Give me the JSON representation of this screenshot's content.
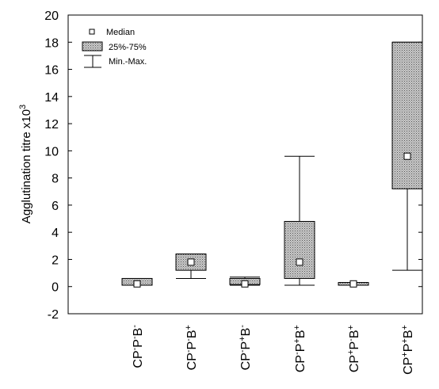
{
  "chart_data": {
    "type": "boxplot",
    "title": "",
    "ylabel": "Agglutination titre x10",
    "ylabel_superscript": "3",
    "ylim": [
      -2,
      20
    ],
    "yticks": [
      -2,
      0,
      2,
      4,
      6,
      8,
      10,
      12,
      14,
      16,
      18,
      20
    ],
    "grid": false,
    "legend_position": "top-left",
    "legend": {
      "median": "Median",
      "box": "25%-75%",
      "whisker": "Min.-Max."
    },
    "categories": [
      {
        "parts": [
          [
            "CP",
            "-"
          ],
          [
            "P",
            "-"
          ],
          [
            "B",
            "-"
          ]
        ],
        "text": "CP-P-B-"
      },
      {
        "parts": [
          [
            "CP",
            "-"
          ],
          [
            "P",
            "-"
          ],
          [
            "B",
            "+"
          ]
        ],
        "text": "CP-P-B+"
      },
      {
        "parts": [
          [
            "CP",
            "-"
          ],
          [
            "P",
            "+"
          ],
          [
            "B",
            "-"
          ]
        ],
        "text": "CP-P+B-"
      },
      {
        "parts": [
          [
            "CP",
            "-"
          ],
          [
            "P",
            "+"
          ],
          [
            "B",
            "+"
          ]
        ],
        "text": "CP-P+B+"
      },
      {
        "parts": [
          [
            "CP",
            "+"
          ],
          [
            "P",
            "-"
          ],
          [
            "B",
            "+"
          ]
        ],
        "text": "CP+P-B+"
      },
      {
        "parts": [
          [
            "CP",
            "+"
          ],
          [
            "P",
            "+"
          ],
          [
            "B",
            "+"
          ]
        ],
        "text": "CP+P+B+"
      }
    ],
    "series": [
      {
        "min": 0.1,
        "q1": 0.1,
        "median": 0.2,
        "q3": 0.6,
        "max": 0.6
      },
      {
        "min": 0.6,
        "q1": 1.2,
        "median": 1.8,
        "q3": 2.4,
        "max": 2.4
      },
      {
        "min": 0.1,
        "q1": 0.15,
        "median": 0.2,
        "q3": 0.6,
        "max": 0.7
      },
      {
        "min": 0.1,
        "q1": 0.6,
        "median": 1.8,
        "q3": 4.8,
        "max": 9.6
      },
      {
        "min": 0.1,
        "q1": 0.1,
        "median": 0.2,
        "q3": 0.3,
        "max": 0.3
      },
      {
        "min": 1.2,
        "q1": 7.2,
        "median": 9.6,
        "q3": 18.0,
        "max": 18.0
      }
    ],
    "colors": {
      "box_fill": "#b9b9b9",
      "stroke": "#000000",
      "median_fill": "#ffffff"
    }
  }
}
